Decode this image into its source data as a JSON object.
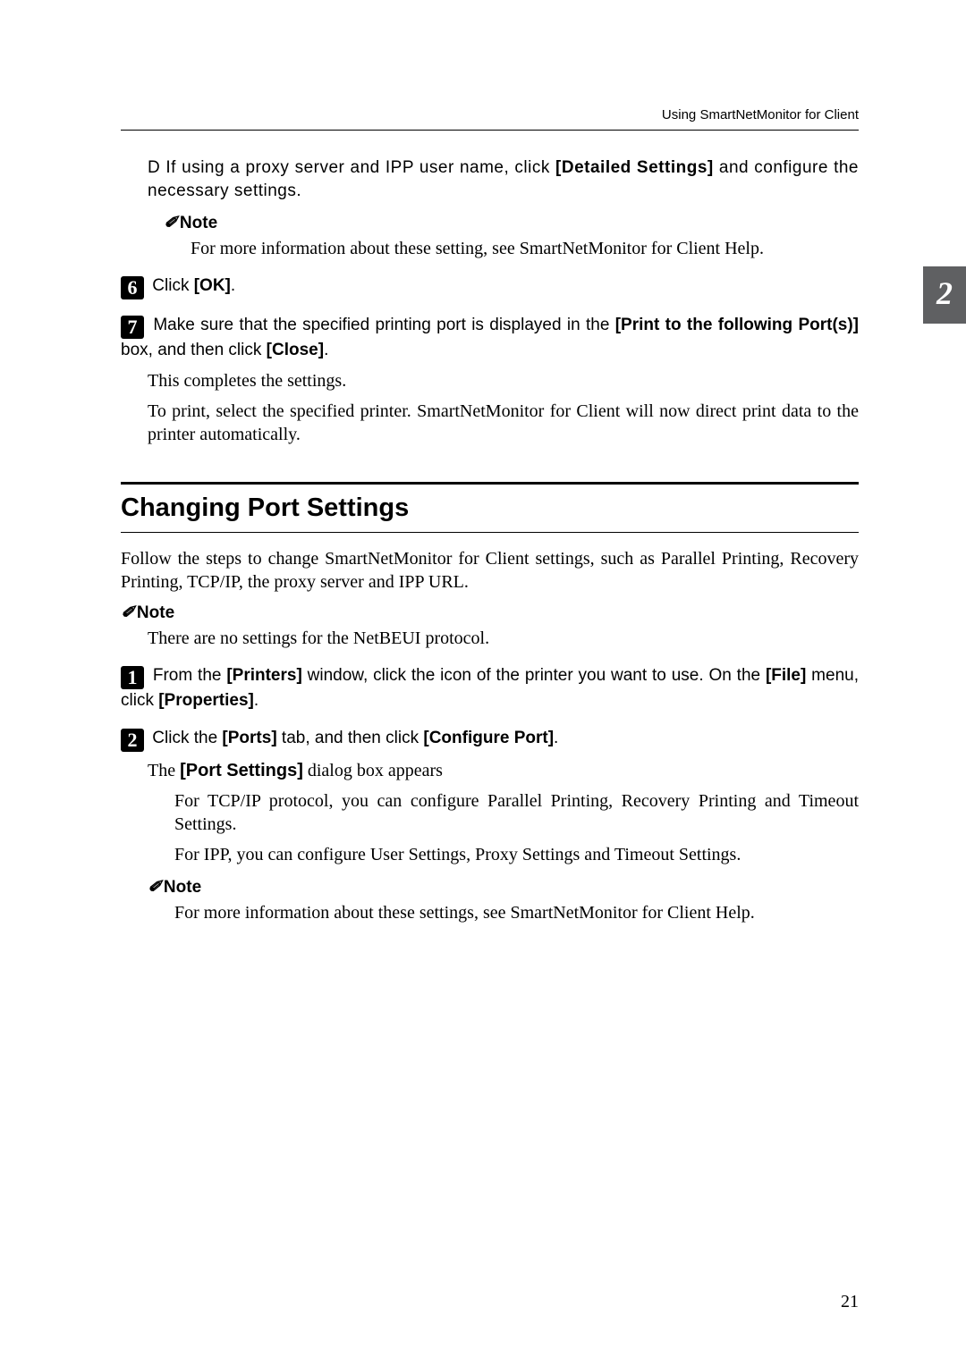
{
  "header": {
    "running": "Using SmartNetMonitor for Client"
  },
  "subD": {
    "marker": "D",
    "text_a": "If using a proxy server and IPP user name, click ",
    "bold_a": "[Detailed Settings]",
    "text_b": " and configure the necessary settings."
  },
  "noteD": {
    "head": "Note",
    "body": "For more information about these setting, see SmartNetMonitor for Client Help."
  },
  "step6": {
    "num": "6",
    "text_a": "Click ",
    "bold_a": "[OK]",
    "text_b": "."
  },
  "step7": {
    "num": "7",
    "text_a": "Make sure that the specified printing port is displayed in the ",
    "bold_a": "[Print to the following Port(s)]",
    "text_b": " box, and then click ",
    "bold_b": "[Close]",
    "text_c": "."
  },
  "after7a": "This completes the settings.",
  "after7b": "To print, select the specified printer. SmartNetMonitor for Client will now direct print data to the printer automatically.",
  "h2": "Changing Port Settings",
  "intro": "Follow the steps to change SmartNetMonitor for Client settings, such as Parallel Printing, Recovery Printing, TCP/IP, the proxy server and IPP URL.",
  "noteA": {
    "head": "Note",
    "body": "There are no settings for the NetBEUI protocol."
  },
  "step1": {
    "num": "1",
    "text_a": "From the ",
    "bold_a": "[Printers]",
    "text_b": " window, click the icon of the printer you want to use. On the ",
    "bold_b": "[File]",
    "text_c": " menu, click ",
    "bold_c": "[Properties]",
    "text_d": "."
  },
  "step2": {
    "num": "2",
    "text_a": "Click the ",
    "bold_a": "[Ports]",
    "text_b": " tab, and then click ",
    "bold_b": "[Configure Port]",
    "text_c": "."
  },
  "after2": {
    "line1_a": "The ",
    "line1_b": "[Port Settings]",
    "line1_c": " dialog box appears",
    "para2": "For TCP/IP protocol, you can configure Parallel Printing, Recovery Printing and Timeout Settings.",
    "para3": "For IPP, you can configure User Settings, Proxy Settings and Timeout Settings."
  },
  "noteB": {
    "head": "Note",
    "body": "For more information about these settings, see SmartNetMonitor for Client Help."
  },
  "tab": "2",
  "page": "21",
  "colors": {
    "tabbg": "#5f6062",
    "tabfg": "#ffffff"
  }
}
